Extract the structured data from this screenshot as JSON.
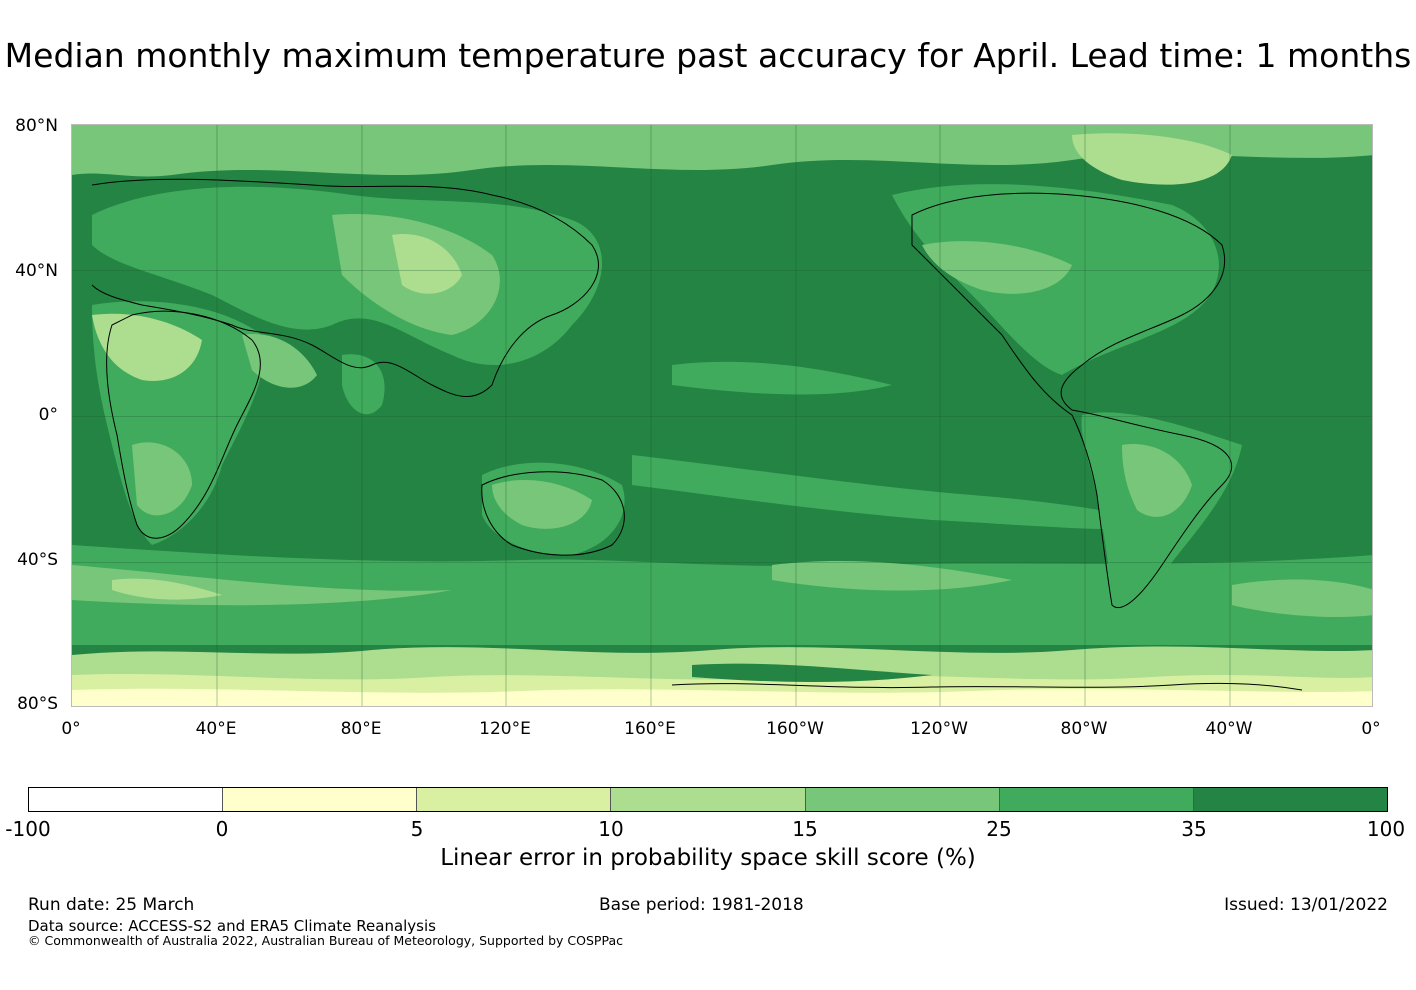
{
  "title": "Median monthly maximum temperature past accuracy for April. Lead time: 1 months",
  "map": {
    "lat_labels": [
      "80°N",
      "40°N",
      "0°",
      "40°S",
      "80°S"
    ],
    "lon_labels": [
      "0°",
      "40°E",
      "80°E",
      "120°E",
      "160°E",
      "160°W",
      "120°W",
      "80°W",
      "40°W",
      "0°"
    ],
    "background_color": "#238443"
  },
  "colorbar": {
    "ticks": [
      "-100",
      "0",
      "5",
      "10",
      "15",
      "25",
      "35",
      "100"
    ],
    "colors": [
      "#ffffff",
      "#ffffcc",
      "#d9f0a3",
      "#addd8e",
      "#78c679",
      "#41ab5d",
      "#238443"
    ],
    "label": "Linear error in probability space skill score (%)"
  },
  "footer": {
    "run_date": "Run date: 25 March",
    "base_period": "Base period: 1981-2018",
    "issued": "Issued: 13/01/2022",
    "data_source": "Data source: ACCESS-S2 and ERA5 Climate Reanalysis",
    "copyright": "© Commonwealth of Australia 2022, Australian Bureau of Meteorology, Supported by COSPPac"
  }
}
